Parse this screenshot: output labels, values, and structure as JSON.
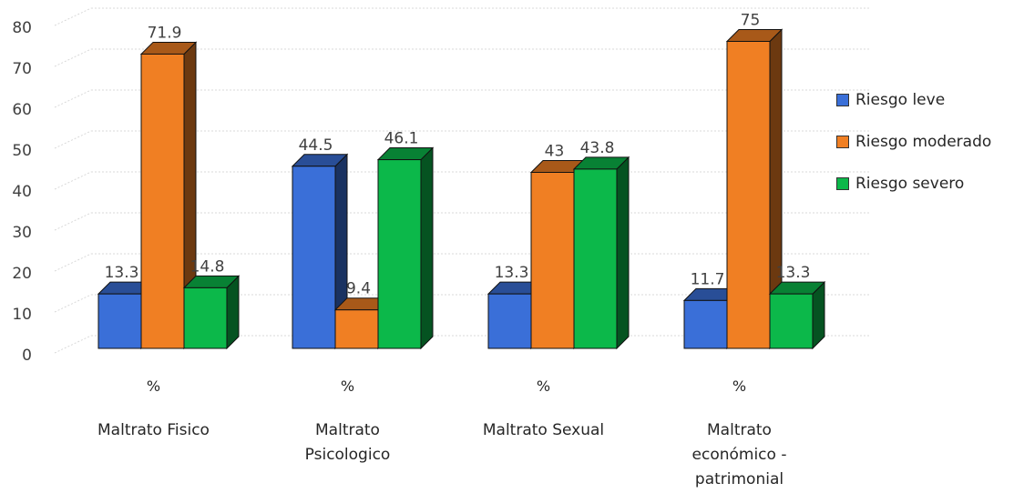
{
  "chart_data": {
    "type": "bar",
    "categories": [
      {
        "pct": "%",
        "lines": [
          "Maltrato Fisico"
        ]
      },
      {
        "pct": "%",
        "lines": [
          "Maltrato",
          "Psicologico"
        ]
      },
      {
        "pct": "%",
        "lines": [
          "Maltrato Sexual"
        ]
      },
      {
        "pct": "%",
        "lines": [
          "Maltrato",
          "económico -",
          "patrimonial"
        ]
      }
    ],
    "series": [
      {
        "name": "Riesgo leve",
        "color": "#3a6fd8",
        "values": [
          13.3,
          44.5,
          13.3,
          11.7
        ]
      },
      {
        "name": "Riesgo moderado",
        "color": "#f07f23",
        "values": [
          71.9,
          9.4,
          43,
          75
        ]
      },
      {
        "name": "Riesgo severo",
        "color": "#0cb84a",
        "values": [
          14.8,
          46.1,
          43.8,
          13.3
        ]
      }
    ],
    "data_labels": [
      [
        "13.3",
        "71.9",
        "14.8"
      ],
      [
        "44.5",
        "9.4",
        "46.1"
      ],
      [
        "13.3",
        "43",
        "43.8"
      ],
      [
        "11.7",
        "75",
        "13.3"
      ]
    ],
    "yticks": [
      0,
      10,
      20,
      30,
      40,
      50,
      60,
      70,
      80
    ],
    "ylim": [
      0,
      80
    ],
    "grid": true,
    "legend": "right"
  }
}
